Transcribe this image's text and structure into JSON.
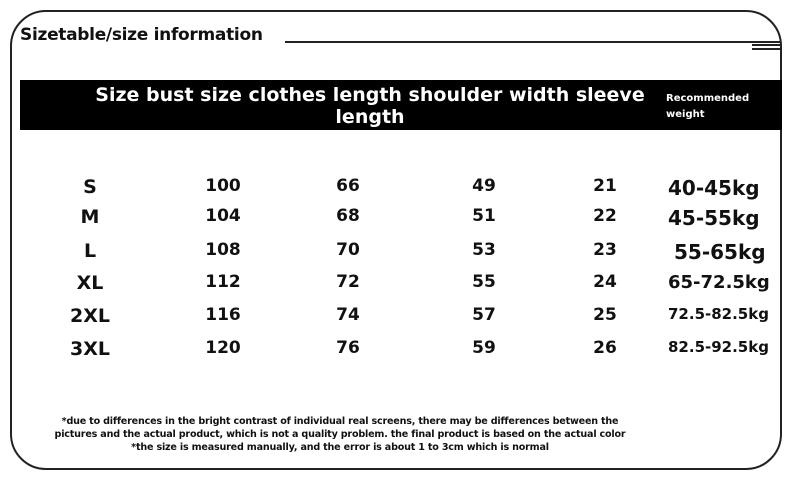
{
  "title": "Sizetable/size information",
  "header": {
    "main": "Size bust size clothes length shoulder width sleeve length",
    "side": "Recommended weight"
  },
  "rows": [
    [
      "S",
      "100",
      "66",
      "49",
      "21",
      "40-45kg"
    ],
    [
      "M",
      "104",
      "68",
      "51",
      "22",
      "45-55kg"
    ],
    [
      "L",
      "108",
      "70",
      "53",
      "23",
      "55-65kg"
    ],
    [
      "XL",
      "112",
      "72",
      "55",
      "24",
      "65-72.5kg"
    ],
    [
      "2XL",
      "116",
      "74",
      "57",
      "25",
      "72.5-82.5kg"
    ],
    [
      "3XL",
      "120",
      "76",
      "59",
      "26",
      "82.5-92.5kg"
    ]
  ],
  "note": "*due to differences in the bright contrast of individual real screens, there may be differences between the pictures and the actual product, which is not a quality problem. the final product is based on the actual color *the size is measured manually, and the error is about 1 to 3cm which is normal",
  "colors": {
    "band": "#000000",
    "text": "#111111",
    "background": "#ffffff"
  }
}
